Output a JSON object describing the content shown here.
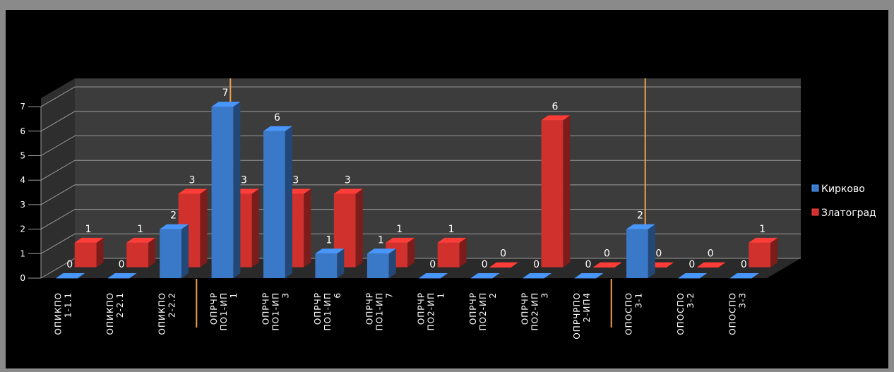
{
  "chart_data": {
    "type": "bar",
    "three_d": true,
    "title": "",
    "xlabel": "",
    "ylabel": "",
    "ylim": [
      0,
      7
    ],
    "yticks": [
      0,
      1,
      2,
      3,
      4,
      5,
      6,
      7
    ],
    "grid": true,
    "legend_position": "right",
    "categories": [
      [
        "ОПИКПО",
        "1-1.1"
      ],
      [
        "ОПИКПО",
        "2-2.1"
      ],
      [
        "ОПИКПО",
        "2-2.2"
      ],
      [
        "ОПРЧР",
        "ПО1-ИП",
        "1"
      ],
      [
        "ОПРЧР",
        "ПО1-ИП",
        "3"
      ],
      [
        "ОПРЧР",
        "ПО1-ИП",
        "6"
      ],
      [
        "ОПРЧР",
        "ПО1-ИП",
        "7"
      ],
      [
        "ОПРЧР",
        "ПО2-ИП",
        "1"
      ],
      [
        "ОПРЧР",
        "ПО2-ИП",
        "2"
      ],
      [
        "ОПРЧР",
        "ПО2-ИП",
        "3"
      ],
      [
        "ОПРЧРПО",
        "2-ИП4"
      ],
      [
        "ОПОСПО",
        "3-1"
      ],
      [
        "ОПОСПО",
        "3-2"
      ],
      [
        "ОПОСПО",
        "3-3"
      ]
    ],
    "group_separators_after_index": [
      2,
      10
    ],
    "series": [
      {
        "name": "Кирково",
        "color": "#3a78c8",
        "values": [
          0,
          0,
          2,
          7,
          6,
          1,
          1,
          0,
          0,
          0,
          0,
          2,
          0,
          0
        ]
      },
      {
        "name": "Златоград",
        "color": "#d0312d",
        "values": [
          1,
          1,
          3,
          3,
          3,
          3,
          1,
          1,
          0,
          6,
          0,
          0,
          0,
          1
        ]
      }
    ],
    "colors": {
      "background": "#000000",
      "frame": "#8a8a8a",
      "wall": "#3c3c3c",
      "floor": "#2a2a2a",
      "grid": "#9a9a9a",
      "separator": "#f0a050"
    }
  }
}
